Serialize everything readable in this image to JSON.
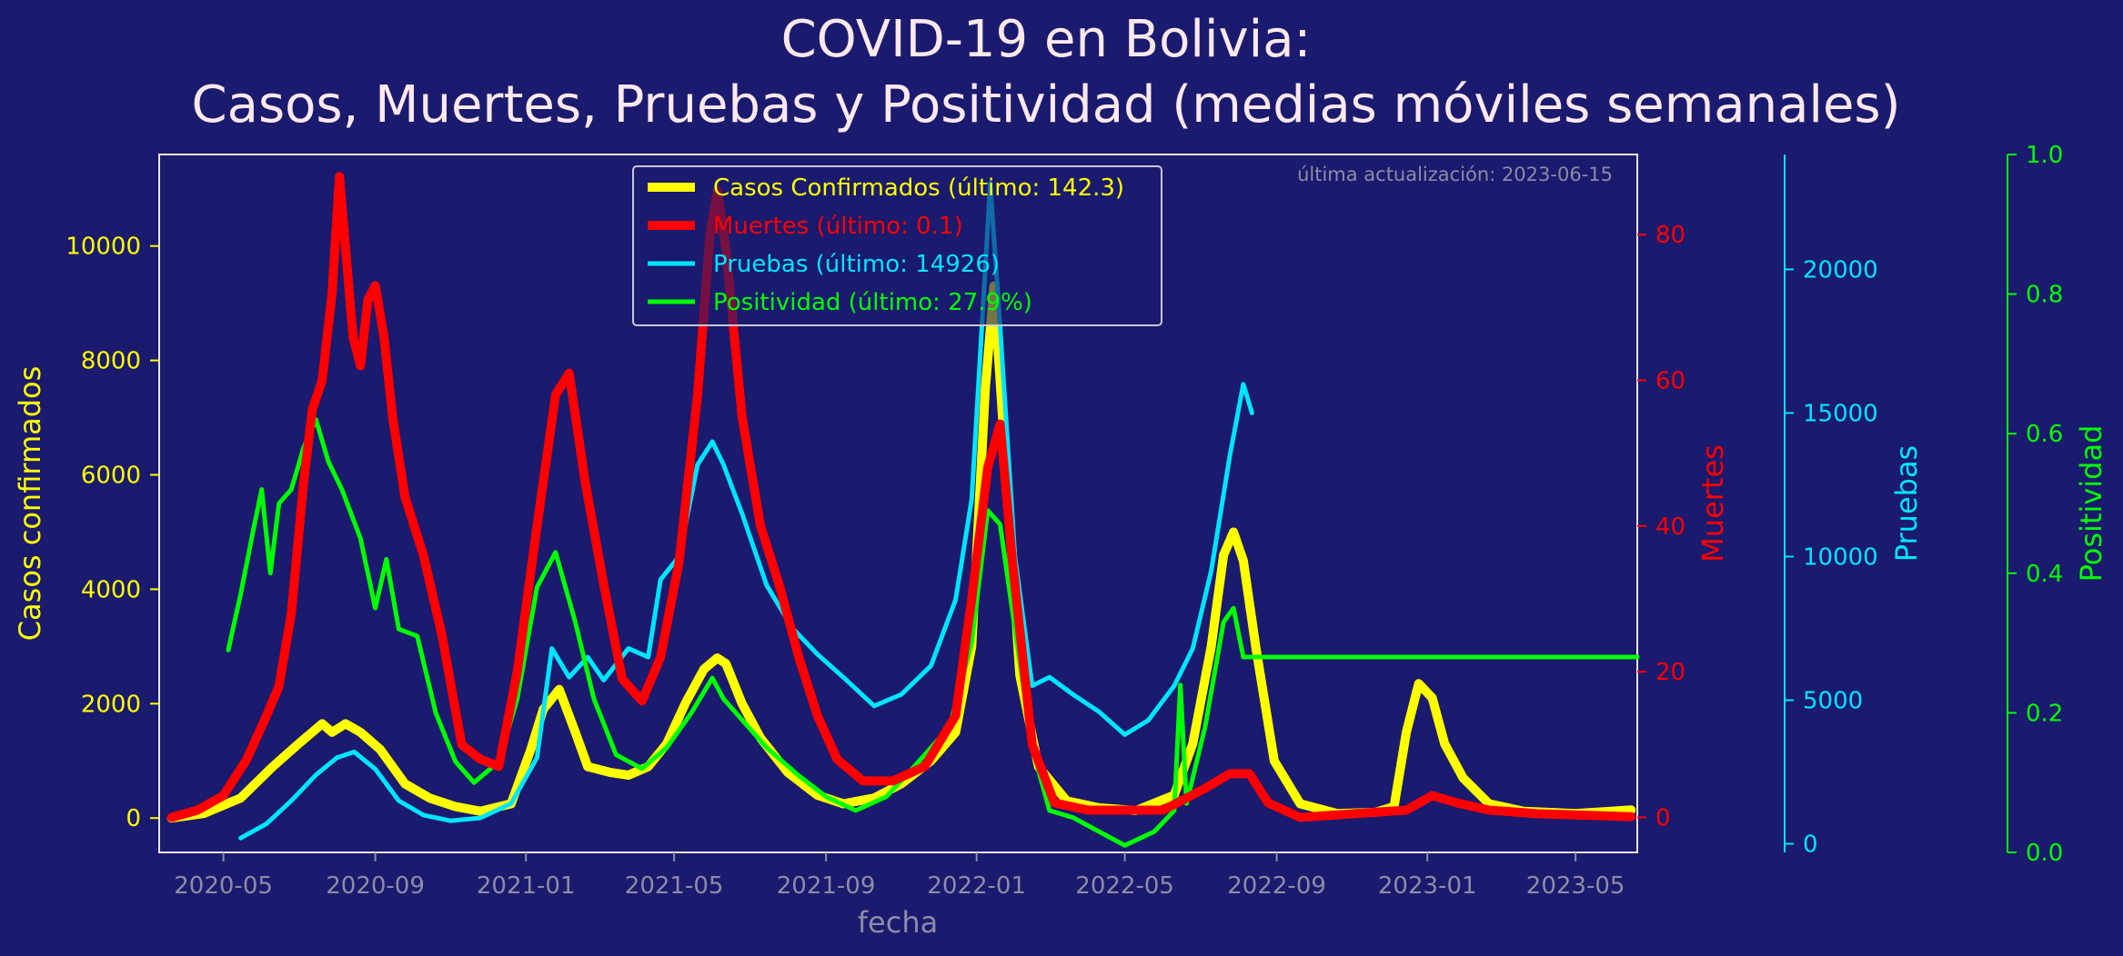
{
  "chart_data": {
    "type": "line",
    "title_line1": "COVID-19 en Bolivia:",
    "title_line2": "Casos, Muertes, Pruebas y Positividad (medias móviles semanales)",
    "xlabel": "fecha",
    "update_note": "última actualización: 2023-06-15",
    "x_range": [
      "2020-03-10",
      "2023-06-20"
    ],
    "x_ticks": [
      "2020-05",
      "2020-09",
      "2021-01",
      "2021-05",
      "2021-09",
      "2022-01",
      "2022-05",
      "2022-09",
      "2023-01",
      "2023-05"
    ],
    "axes": {
      "casos": {
        "label": "Casos confirmados",
        "range": [
          -600,
          11600
        ],
        "ticks": [
          "0",
          "2000",
          "4000",
          "6000",
          "8000",
          "10000"
        ]
      },
      "muertes": {
        "label": "Muertes",
        "range": [
          -4.8,
          91
        ],
        "ticks": [
          "0",
          "20",
          "40",
          "60",
          "80"
        ]
      },
      "pruebas": {
        "label": "Pruebas",
        "range": [
          -300,
          24000
        ],
        "ticks": [
          "0",
          "5000",
          "10000",
          "15000",
          "20000"
        ]
      },
      "positividad": {
        "label": "Positividad",
        "range": [
          0.0,
          1.0
        ],
        "ticks": [
          "0.0",
          "0.2",
          "0.4",
          "0.6",
          "0.8",
          "1.0"
        ]
      }
    },
    "legend_position": "top-center",
    "grid": false,
    "colors": {
      "background": "#1a1a6e",
      "casos": "#ffff00",
      "muertes": "#ff0000",
      "pruebas": "#00e5ff",
      "positividad": "#00ff00",
      "muted": "#8c8ca8",
      "frame": "#e6e6f0"
    },
    "series": [
      {
        "key": "casos",
        "legend": "Casos Confirmados (último: 142.3)",
        "color": "#ffff00",
        "axis": "casos",
        "width": 10,
        "points": [
          [
            "2020-03-20",
            0
          ],
          [
            "2020-04-15",
            80
          ],
          [
            "2020-05-15",
            350
          ],
          [
            "2020-06-10",
            900
          ],
          [
            "2020-07-01",
            1300
          ],
          [
            "2020-07-20",
            1650
          ],
          [
            "2020-07-28",
            1500
          ],
          [
            "2020-08-08",
            1650
          ],
          [
            "2020-08-20",
            1500
          ],
          [
            "2020-09-05",
            1200
          ],
          [
            "2020-09-25",
            600
          ],
          [
            "2020-10-15",
            350
          ],
          [
            "2020-11-05",
            200
          ],
          [
            "2020-11-25",
            120
          ],
          [
            "2020-12-20",
            250
          ],
          [
            "2021-01-05",
            1200
          ],
          [
            "2021-01-15",
            1900
          ],
          [
            "2021-01-28",
            2250
          ],
          [
            "2021-02-10",
            1500
          ],
          [
            "2021-02-20",
            900
          ],
          [
            "2021-03-10",
            800
          ],
          [
            "2021-03-25",
            750
          ],
          [
            "2021-04-10",
            900
          ],
          [
            "2021-04-25",
            1300
          ],
          [
            "2021-05-10",
            2000
          ],
          [
            "2021-05-25",
            2600
          ],
          [
            "2021-06-05",
            2800
          ],
          [
            "2021-06-12",
            2700
          ],
          [
            "2021-06-25",
            2000
          ],
          [
            "2021-07-10",
            1400
          ],
          [
            "2021-08-01",
            800
          ],
          [
            "2021-08-25",
            400
          ],
          [
            "2021-09-15",
            250
          ],
          [
            "2021-10-10",
            350
          ],
          [
            "2021-11-01",
            600
          ],
          [
            "2021-11-25",
            1000
          ],
          [
            "2021-12-15",
            1500
          ],
          [
            "2021-12-28",
            3000
          ],
          [
            "2022-01-08",
            7500
          ],
          [
            "2022-01-15",
            9300
          ],
          [
            "2022-01-25",
            6000
          ],
          [
            "2022-02-05",
            2500
          ],
          [
            "2022-02-20",
            900
          ],
          [
            "2022-03-15",
            300
          ],
          [
            "2022-04-10",
            180
          ],
          [
            "2022-05-10",
            130
          ],
          [
            "2022-06-10",
            400
          ],
          [
            "2022-06-25",
            1300
          ],
          [
            "2022-07-10",
            3000
          ],
          [
            "2022-07-20",
            4600
          ],
          [
            "2022-07-28",
            5000
          ],
          [
            "2022-08-05",
            4500
          ],
          [
            "2022-08-15",
            3000
          ],
          [
            "2022-08-30",
            1000
          ],
          [
            "2022-09-20",
            250
          ],
          [
            "2022-10-20",
            80
          ],
          [
            "2022-11-20",
            100
          ],
          [
            "2022-12-05",
            200
          ],
          [
            "2022-12-15",
            1500
          ],
          [
            "2022-12-25",
            2350
          ],
          [
            "2023-01-05",
            2100
          ],
          [
            "2023-01-15",
            1300
          ],
          [
            "2023-01-30",
            700
          ],
          [
            "2023-02-20",
            250
          ],
          [
            "2023-03-20",
            120
          ],
          [
            "2023-05-01",
            80
          ],
          [
            "2023-06-15",
            142
          ]
        ]
      },
      {
        "key": "muertes",
        "legend": "Muertes (último: 0.1)",
        "color": "#ff0000",
        "axis": "muertes",
        "width": 10,
        "points": [
          [
            "2020-03-20",
            0
          ],
          [
            "2020-04-10",
            1
          ],
          [
            "2020-05-01",
            3
          ],
          [
            "2020-05-20",
            8
          ],
          [
            "2020-06-05",
            14
          ],
          [
            "2020-06-15",
            18
          ],
          [
            "2020-06-25",
            28
          ],
          [
            "2020-07-05",
            46
          ],
          [
            "2020-07-12",
            56
          ],
          [
            "2020-07-20",
            60
          ],
          [
            "2020-07-28",
            72
          ],
          [
            "2020-08-03",
            88
          ],
          [
            "2020-08-08",
            78
          ],
          [
            "2020-08-14",
            66
          ],
          [
            "2020-08-20",
            62
          ],
          [
            "2020-08-26",
            71
          ],
          [
            "2020-09-01",
            73
          ],
          [
            "2020-09-08",
            66
          ],
          [
            "2020-09-15",
            55
          ],
          [
            "2020-09-25",
            44
          ],
          [
            "2020-10-10",
            36
          ],
          [
            "2020-10-25",
            25
          ],
          [
            "2020-11-10",
            10
          ],
          [
            "2020-11-25",
            8
          ],
          [
            "2020-12-10",
            7
          ],
          [
            "2020-12-25",
            20
          ],
          [
            "2021-01-10",
            40
          ],
          [
            "2021-01-25",
            58
          ],
          [
            "2021-02-05",
            61
          ],
          [
            "2021-02-18",
            46
          ],
          [
            "2021-03-05",
            32
          ],
          [
            "2021-03-20",
            19
          ],
          [
            "2021-04-05",
            16
          ],
          [
            "2021-04-20",
            22
          ],
          [
            "2021-05-05",
            35
          ],
          [
            "2021-05-20",
            58
          ],
          [
            "2021-05-30",
            80
          ],
          [
            "2021-06-05",
            86
          ],
          [
            "2021-06-12",
            78
          ],
          [
            "2021-06-25",
            55
          ],
          [
            "2021-07-10",
            40
          ],
          [
            "2021-07-25",
            32
          ],
          [
            "2021-08-10",
            22
          ],
          [
            "2021-08-25",
            14
          ],
          [
            "2021-09-10",
            8
          ],
          [
            "2021-10-01",
            5
          ],
          [
            "2021-10-25",
            5
          ],
          [
            "2021-11-20",
            7
          ],
          [
            "2021-12-15",
            14
          ],
          [
            "2021-12-28",
            30
          ],
          [
            "2022-01-10",
            48
          ],
          [
            "2022-01-20",
            54
          ],
          [
            "2022-01-30",
            35
          ],
          [
            "2022-02-15",
            10
          ],
          [
            "2022-03-05",
            2
          ],
          [
            "2022-04-01",
            1
          ],
          [
            "2022-06-01",
            1
          ],
          [
            "2022-07-05",
            4
          ],
          [
            "2022-07-25",
            6
          ],
          [
            "2022-08-10",
            6
          ],
          [
            "2022-08-25",
            2
          ],
          [
            "2022-09-20",
            0
          ],
          [
            "2022-12-15",
            1
          ],
          [
            "2023-01-05",
            3
          ],
          [
            "2023-01-25",
            2
          ],
          [
            "2023-02-20",
            1
          ],
          [
            "2023-04-01",
            0.5
          ],
          [
            "2023-06-15",
            0.1
          ]
        ]
      },
      {
        "key": "pruebas",
        "legend": "Pruebas (último: 14926)",
        "color": "#00e5ff",
        "axis": "pruebas",
        "width": 5,
        "points": [
          [
            "2020-05-15",
            200
          ],
          [
            "2020-06-05",
            700
          ],
          [
            "2020-06-25",
            1500
          ],
          [
            "2020-07-15",
            2400
          ],
          [
            "2020-08-01",
            3000
          ],
          [
            "2020-08-15",
            3200
          ],
          [
            "2020-09-01",
            2600
          ],
          [
            "2020-09-20",
            1500
          ],
          [
            "2020-10-10",
            1000
          ],
          [
            "2020-11-01",
            800
          ],
          [
            "2020-11-25",
            900
          ],
          [
            "2020-12-20",
            1400
          ],
          [
            "2021-01-10",
            3000
          ],
          [
            "2021-01-22",
            6800
          ],
          [
            "2021-02-05",
            5800
          ],
          [
            "2021-02-20",
            6500
          ],
          [
            "2021-03-05",
            5700
          ],
          [
            "2021-03-25",
            6800
          ],
          [
            "2021-04-10",
            6500
          ],
          [
            "2021-04-20",
            9200
          ],
          [
            "2021-05-05",
            10000
          ],
          [
            "2021-05-20",
            13200
          ],
          [
            "2021-06-01",
            14000
          ],
          [
            "2021-06-10",
            13200
          ],
          [
            "2021-06-25",
            11500
          ],
          [
            "2021-07-15",
            9000
          ],
          [
            "2021-08-05",
            7500
          ],
          [
            "2021-08-25",
            6600
          ],
          [
            "2021-09-15",
            5800
          ],
          [
            "2021-10-10",
            4800
          ],
          [
            "2021-11-01",
            5200
          ],
          [
            "2021-11-25",
            6200
          ],
          [
            "2021-12-15",
            8500
          ],
          [
            "2021-12-28",
            12000
          ],
          [
            "2022-01-08",
            20000
          ],
          [
            "2022-01-12",
            23000
          ],
          [
            "2022-01-20",
            18000
          ],
          [
            "2022-02-01",
            10000
          ],
          [
            "2022-02-15",
            5500
          ],
          [
            "2022-03-01",
            5800
          ],
          [
            "2022-03-20",
            5200
          ],
          [
            "2022-04-10",
            4600
          ],
          [
            "2022-05-01",
            3800
          ],
          [
            "2022-05-20",
            4300
          ],
          [
            "2022-06-10",
            5500
          ],
          [
            "2022-06-25",
            6800
          ],
          [
            "2022-07-10",
            9500
          ],
          [
            "2022-07-25",
            13500
          ],
          [
            "2022-08-05",
            16000
          ],
          [
            "2022-08-12",
            15000
          ]
        ]
      },
      {
        "key": "positividad",
        "legend": "Positividad (último: 27.9%)",
        "color": "#00ff00",
        "axis": "positividad",
        "width": 5,
        "points": [
          [
            "2020-05-05",
            0.29
          ],
          [
            "2020-05-15",
            0.37
          ],
          [
            "2020-05-25",
            0.46
          ],
          [
            "2020-06-01",
            0.52
          ],
          [
            "2020-06-08",
            0.4
          ],
          [
            "2020-06-15",
            0.5
          ],
          [
            "2020-06-25",
            0.52
          ],
          [
            "2020-07-05",
            0.58
          ],
          [
            "2020-07-15",
            0.62
          ],
          [
            "2020-07-25",
            0.56
          ],
          [
            "2020-08-05",
            0.52
          ],
          [
            "2020-08-20",
            0.45
          ],
          [
            "2020-09-01",
            0.35
          ],
          [
            "2020-09-10",
            0.42
          ],
          [
            "2020-09-20",
            0.32
          ],
          [
            "2020-10-05",
            0.31
          ],
          [
            "2020-10-20",
            0.2
          ],
          [
            "2020-11-05",
            0.13
          ],
          [
            "2020-11-20",
            0.1
          ],
          [
            "2020-12-10",
            0.13
          ],
          [
            "2020-12-25",
            0.22
          ],
          [
            "2021-01-10",
            0.38
          ],
          [
            "2021-01-25",
            0.43
          ],
          [
            "2021-02-10",
            0.33
          ],
          [
            "2021-02-25",
            0.22
          ],
          [
            "2021-03-15",
            0.14
          ],
          [
            "2021-04-05",
            0.12
          ],
          [
            "2021-04-25",
            0.15
          ],
          [
            "2021-05-15",
            0.2
          ],
          [
            "2021-06-01",
            0.25
          ],
          [
            "2021-06-10",
            0.22
          ],
          [
            "2021-06-25",
            0.19
          ],
          [
            "2021-07-15",
            0.15
          ],
          [
            "2021-08-10",
            0.11
          ],
          [
            "2021-09-01",
            0.08
          ],
          [
            "2021-09-25",
            0.06
          ],
          [
            "2021-10-20",
            0.08
          ],
          [
            "2021-11-15",
            0.13
          ],
          [
            "2021-12-10",
            0.18
          ],
          [
            "2021-12-28",
            0.3
          ],
          [
            "2022-01-10",
            0.49
          ],
          [
            "2022-01-20",
            0.47
          ],
          [
            "2022-02-01",
            0.32
          ],
          [
            "2022-02-15",
            0.15
          ],
          [
            "2022-03-01",
            0.06
          ],
          [
            "2022-03-20",
            0.05
          ],
          [
            "2022-04-10",
            0.03
          ],
          [
            "2022-05-01",
            0.01
          ],
          [
            "2022-05-25",
            0.03
          ],
          [
            "2022-06-10",
            0.06
          ],
          [
            "2022-06-15",
            0.24
          ],
          [
            "2022-06-20",
            0.07
          ],
          [
            "2022-07-05",
            0.18
          ],
          [
            "2022-07-20",
            0.33
          ],
          [
            "2022-07-28",
            0.35
          ],
          [
            "2022-08-05",
            0.28
          ],
          [
            "2023-06-20",
            0.28
          ]
        ]
      }
    ]
  }
}
